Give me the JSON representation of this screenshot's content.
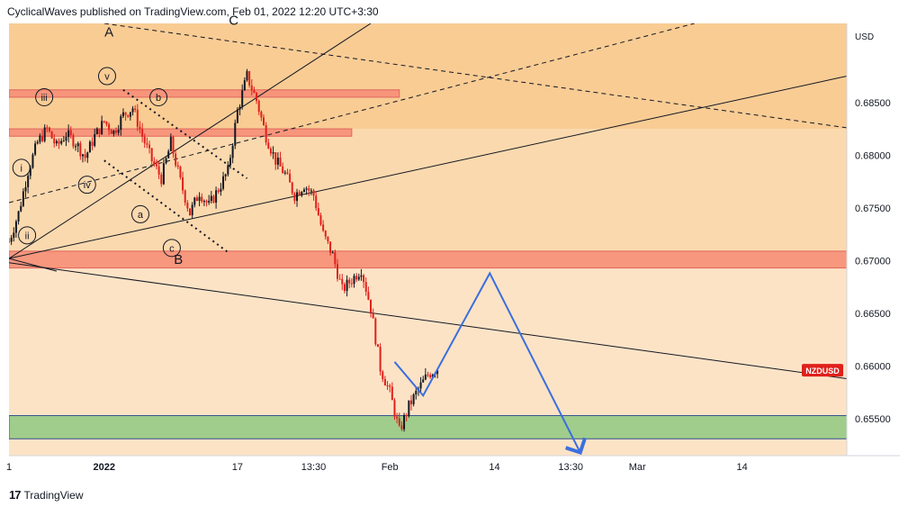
{
  "header": {
    "publisher_text": "CyclicalWaves published on TradingView.com, Feb 01, 2022 12:20 UTC+3:30"
  },
  "footer": {
    "logo_glyph": "17",
    "brand": "TradingView"
  },
  "colors": {
    "background": "#fde3c6",
    "band_top": "#f9cc94",
    "band_mid": "#fbd9ae",
    "resistance": "#f7937a",
    "support": "#9ccc88",
    "candle_up": "#131722",
    "candle_down": "#e0201b",
    "forecast": "#3a6fe0",
    "price_tag": "#e0201b"
  },
  "chart_data": {
    "type": "candlestick",
    "symbol": "NZDUSD",
    "currency": "USD",
    "ylim": [
      0.6515,
      0.6925
    ],
    "y_ticks": [
      "0.68500",
      "0.68000",
      "0.67500",
      "0.67000",
      "0.66500",
      "0.66000",
      "0.65500"
    ],
    "y_tick_values": [
      0.685,
      0.68,
      0.675,
      0.67,
      0.665,
      0.66,
      0.655
    ],
    "x_ticks": [
      "1",
      "2022",
      "17",
      "13:30",
      "Feb",
      "14",
      "13:30",
      "Mar",
      "14"
    ],
    "x_tick_days": [
      0,
      10,
      24,
      32,
      40,
      51,
      59,
      66,
      77
    ],
    "xlim_days": [
      0,
      88
    ],
    "price_tag": "NZDUSD",
    "price_tag_value": 0.6596,
    "price_path": [
      [
        0,
        0.6718
      ],
      [
        1,
        0.6745
      ],
      [
        2,
        0.6785
      ],
      [
        3,
        0.6812
      ],
      [
        4,
        0.6825
      ],
      [
        5,
        0.6808
      ],
      [
        6,
        0.682
      ],
      [
        7,
        0.6812
      ],
      [
        8,
        0.6798
      ],
      [
        9,
        0.6818
      ],
      [
        10,
        0.6832
      ],
      [
        11,
        0.6822
      ],
      [
        12,
        0.6838
      ],
      [
        13,
        0.6845
      ],
      [
        14,
        0.6818
      ],
      [
        15,
        0.6795
      ],
      [
        16,
        0.6778
      ],
      [
        17,
        0.6812
      ],
      [
        18,
        0.6775
      ],
      [
        19,
        0.6745
      ],
      [
        20,
        0.6765
      ],
      [
        21,
        0.6752
      ],
      [
        22,
        0.6768
      ],
      [
        23,
        0.6785
      ],
      [
        24,
        0.6842
      ],
      [
        25,
        0.6875
      ],
      [
        26,
        0.6852
      ],
      [
        27,
        0.6818
      ],
      [
        28,
        0.6795
      ],
      [
        29,
        0.6782
      ],
      [
        30,
        0.6762
      ],
      [
        31,
        0.6772
      ],
      [
        32,
        0.6762
      ],
      [
        33,
        0.6725
      ],
      [
        34,
        0.6705
      ],
      [
        35,
        0.6672
      ],
      [
        36,
        0.6682
      ],
      [
        37,
        0.6692
      ],
      [
        38,
        0.6655
      ],
      [
        39,
        0.6598
      ],
      [
        40,
        0.6575
      ],
      [
        41,
        0.6538
      ],
      [
        42,
        0.6562
      ],
      [
        43,
        0.6578
      ],
      [
        44,
        0.6592
      ],
      [
        45,
        0.6598
      ]
    ],
    "zones": [
      {
        "name": "resistance-upper",
        "kind": "resistance",
        "y1": 0.6855,
        "y2": 0.6862,
        "x1": 0,
        "x2": 41
      },
      {
        "name": "resistance-mid",
        "kind": "resistance",
        "y1": 0.6818,
        "y2": 0.6825,
        "x1": 0,
        "x2": 36
      },
      {
        "name": "resistance-main",
        "kind": "resistance",
        "y1": 0.6693,
        "y2": 0.6709,
        "x1": 0,
        "x2": 88
      },
      {
        "name": "support-main",
        "kind": "support",
        "y1": 0.6531,
        "y2": 0.6553,
        "x1": 0,
        "x2": 88
      }
    ],
    "trendlines": [
      {
        "name": "channel-upper",
        "style": "solid",
        "p1": [
          0,
          0.6702
        ],
        "p2": [
          38,
          0.6925
        ]
      },
      {
        "name": "channel-lower",
        "style": "solid",
        "p1": [
          0,
          0.6702
        ],
        "p2": [
          88,
          0.6875
        ]
      },
      {
        "name": "long-down-line",
        "style": "solid",
        "p1": [
          0,
          0.6698
        ],
        "p2": [
          88,
          0.6588
        ]
      },
      {
        "name": "short-down-line",
        "style": "solid",
        "p1": [
          0,
          0.6702
        ],
        "p2": [
          5,
          0.669
        ]
      },
      {
        "name": "dashed-down",
        "style": "dashed",
        "p1": [
          10,
          0.6925
        ],
        "p2": [
          88,
          0.6826
        ]
      },
      {
        "name": "dashed-up",
        "style": "dashed",
        "p1": [
          0,
          0.6755
        ],
        "p2": [
          72,
          0.6925
        ]
      },
      {
        "name": "dotted-wave-b",
        "style": "dotted",
        "p1": [
          12,
          0.6862
        ],
        "p2": [
          25,
          0.6778
        ]
      },
      {
        "name": "dotted-wave-iv",
        "style": "dotted",
        "p1": [
          10,
          0.6795
        ],
        "p2": [
          23,
          0.6708
        ]
      }
    ],
    "forecast_path": [
      [
        40.5,
        0.6604
      ],
      [
        43.5,
        0.6572
      ],
      [
        50.5,
        0.6688
      ],
      [
        60,
        0.6518
      ]
    ],
    "wave_labels": [
      {
        "text": "A",
        "x": 10.5,
        "y": 0.6917,
        "circled": false
      },
      {
        "text": "C",
        "x": 23.6,
        "y": 0.6928,
        "circled": false
      },
      {
        "text": "B",
        "x": 17.8,
        "y": 0.6701,
        "circled": false
      },
      {
        "text": "v",
        "x": 10.3,
        "y": 0.6875,
        "circled": true
      },
      {
        "text": "iii",
        "x": 3.7,
        "y": 0.6855,
        "circled": true
      },
      {
        "text": "b",
        "x": 15.7,
        "y": 0.6855,
        "circled": true
      },
      {
        "text": "i",
        "x": 1.3,
        "y": 0.6788,
        "circled": true
      },
      {
        "text": "iv",
        "x": 8.2,
        "y": 0.6772,
        "circled": true
      },
      {
        "text": "a",
        "x": 13.8,
        "y": 0.6744,
        "circled": true
      },
      {
        "text": "ii",
        "x": 1.9,
        "y": 0.6724,
        "circled": true
      },
      {
        "text": "c",
        "x": 17.1,
        "y": 0.6712,
        "circled": true
      }
    ],
    "title": "",
    "xlabel": "",
    "ylabel": ""
  }
}
